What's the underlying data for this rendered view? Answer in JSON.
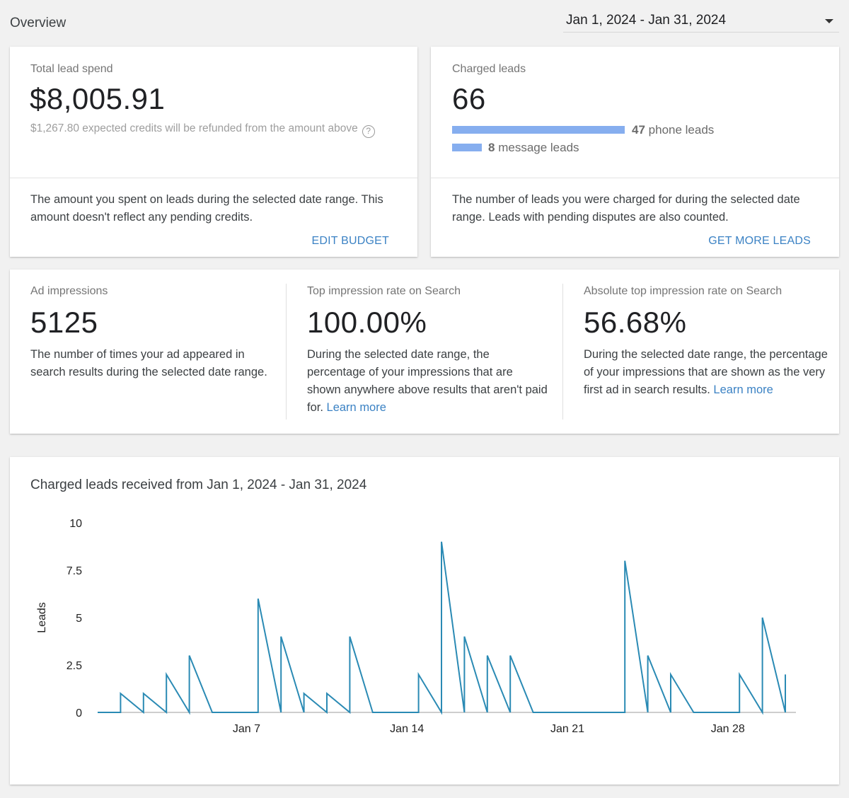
{
  "header": {
    "title": "Overview",
    "date_range": "Jan 1, 2024 - Jan 31, 2024"
  },
  "spend_card": {
    "label": "Total lead spend",
    "value": "$8,005.91",
    "note": "$1,267.80 expected credits will be refunded from the amount above",
    "description": "The amount you spent on leads during the selected date range. This amount doesn't reflect any pending credits.",
    "action": "EDIT BUDGET"
  },
  "leads_card": {
    "label": "Charged leads",
    "value": "66",
    "phone_count": "47",
    "phone_label": "phone leads",
    "message_count": "8",
    "message_label": "message leads",
    "description": "The number of leads you were charged for during the selected date range. Leads with pending disputes are also counted.",
    "action": "GET MORE LEADS",
    "bar_color": "#86aeef"
  },
  "metrics": [
    {
      "label": "Ad impressions",
      "value": "5125",
      "description": "The number of times your ad appeared in search results during the selected date range.",
      "link": ""
    },
    {
      "label": "Top impression rate on Search",
      "value": "100.00%",
      "description": "During the selected date range, the percentage of your impressions that are shown anywhere above results that aren't paid for.",
      "link": "Learn more"
    },
    {
      "label": "Absolute top impression rate on Search",
      "value": "56.68%",
      "description": "During the selected date range, the percentage of your impressions that are shown as the very first ad in search results.",
      "link": "Learn more"
    }
  ],
  "chart_card": {
    "title": "Charged leads received from Jan 1, 2024 - Jan 31, 2024"
  },
  "chart_data": {
    "type": "line",
    "ylabel": "Leads",
    "xlabel": "",
    "ylim": [
      0,
      10
    ],
    "yticks": [
      "0",
      "2.5",
      "5",
      "7.5",
      "10"
    ],
    "xticks": [
      "Jan 7",
      "Jan 14",
      "Jan 21",
      "Jan 28"
    ],
    "line_color": "#2a8ab4",
    "x": [
      "Jan 1",
      "Jan 2",
      "Jan 3",
      "Jan 4",
      "Jan 5",
      "Jan 6",
      "Jan 7",
      "Jan 8",
      "Jan 9",
      "Jan 10",
      "Jan 11",
      "Jan 12",
      "Jan 13",
      "Jan 14",
      "Jan 15",
      "Jan 16",
      "Jan 17",
      "Jan 18",
      "Jan 19",
      "Jan 20",
      "Jan 21",
      "Jan 22",
      "Jan 23",
      "Jan 24",
      "Jan 25",
      "Jan 26",
      "Jan 27",
      "Jan 28",
      "Jan 29",
      "Jan 30",
      "Jan 31"
    ],
    "values": [
      0,
      1,
      1,
      2,
      3,
      0,
      0,
      6,
      4,
      1,
      1,
      4,
      0,
      0,
      2,
      9,
      4,
      3,
      3,
      0,
      0,
      0,
      0,
      8,
      3,
      2,
      0,
      0,
      2,
      5,
      2
    ]
  }
}
